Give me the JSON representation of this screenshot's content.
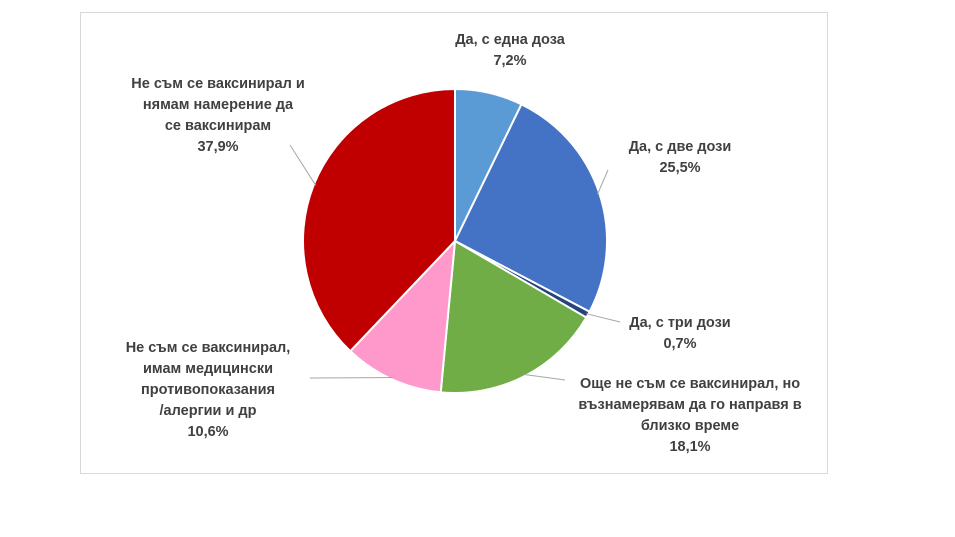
{
  "chart_data": {
    "type": "pie",
    "start_angle_deg": 0,
    "direction": "clockwise",
    "slices": [
      {
        "name": "Да, с една доза",
        "value": 7.2,
        "label": "7,2%",
        "color": "#5B9BD5",
        "label_lines": [
          "Да, с една доза"
        ]
      },
      {
        "name": "Да, с две дози",
        "value": 25.5,
        "label": "25,5%",
        "color": "#4472C4",
        "label_lines": [
          "Да, с две дози"
        ]
      },
      {
        "name": "Да, с три дози",
        "value": 0.7,
        "label": "0,7%",
        "color": "#264478",
        "label_lines": [
          "Да, с три дози"
        ]
      },
      {
        "name": "Още не съм се ваксинирал, но възнамерявам да го направя в близко време",
        "value": 18.1,
        "label": "18,1%",
        "color": "#70AD47",
        "label_lines": [
          "Още не съм се ваксинирал, но",
          "възнамерявам да го направя в",
          "близко време"
        ]
      },
      {
        "name": "Не съм се ваксинирал, имам медицински противопоказания /алергии и др",
        "value": 10.6,
        "label": "10,6%",
        "color": "#FF99CC",
        "label_lines": [
          "Не съм се ваксинирал,",
          "имам медицински",
          "противопоказания",
          "/алергии и др"
        ]
      },
      {
        "name": "Не съм се ваксинирал и нямам намерение да се ваксинирам",
        "value": 37.9,
        "label": "37,9%",
        "color": "#C00000",
        "label_lines": [
          "Не съм се ваксинирал и",
          "нямам намерение да",
          "се ваксинирам"
        ]
      }
    ]
  }
}
